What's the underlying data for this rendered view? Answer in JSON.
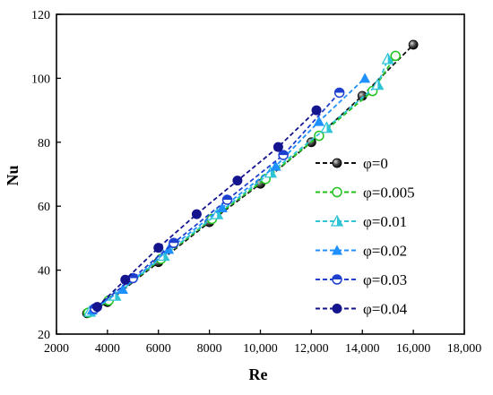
{
  "chart_data": {
    "type": "line",
    "xlabel": "Re",
    "ylabel": "Nu",
    "xlim": [
      2000,
      18000
    ],
    "ylim": [
      20,
      120
    ],
    "x_ticks": [
      "2000",
      "4000",
      "6000",
      "8000",
      "10,000",
      "12,000",
      "14,000",
      "16,000",
      "18,000"
    ],
    "y_ticks": [
      "20",
      "40",
      "60",
      "80",
      "100",
      "120"
    ],
    "grid": false,
    "legend_position": "right",
    "series": [
      {
        "name": "φ=0",
        "color": "#111111",
        "marker": "sphere",
        "points": [
          [
            3200,
            26.5
          ],
          [
            4000,
            30
          ],
          [
            6000,
            42.5
          ],
          [
            8000,
            55
          ],
          [
            10000,
            67
          ],
          [
            12000,
            80
          ],
          [
            14000,
            94.5
          ],
          [
            16000,
            110.5
          ]
        ]
      },
      {
        "name": "φ=0.005",
        "color": "#22c21f",
        "marker": "open-circle",
        "points": [
          [
            3250,
            26.7
          ],
          [
            4050,
            30.5
          ],
          [
            6100,
            43.5
          ],
          [
            8100,
            56
          ],
          [
            10200,
            68.5
          ],
          [
            12300,
            82
          ],
          [
            14400,
            96
          ],
          [
            15300,
            107
          ]
        ]
      },
      {
        "name": "φ=0.01",
        "color": "#2ec4d6",
        "marker": "half-triangle",
        "points": [
          [
            3300,
            27
          ],
          [
            4300,
            32
          ],
          [
            6200,
            44.5
          ],
          [
            8300,
            57.5
          ],
          [
            10400,
            70.5
          ],
          [
            12600,
            84.5
          ],
          [
            14600,
            98
          ],
          [
            15000,
            106
          ]
        ]
      },
      {
        "name": "φ=0.02",
        "color": "#1e90ff",
        "marker": "triangle",
        "points": [
          [
            3400,
            27.5
          ],
          [
            4600,
            34
          ],
          [
            6400,
            46.5
          ],
          [
            8500,
            59.5
          ],
          [
            10600,
            72.5
          ],
          [
            12300,
            86.5
          ],
          [
            14100,
            100
          ]
        ]
      },
      {
        "name": "φ=0.03",
        "color": "#1f3fcf",
        "marker": "half-circle",
        "points": [
          [
            3500,
            28
          ],
          [
            5000,
            37.5
          ],
          [
            6600,
            48.5
          ],
          [
            8700,
            62
          ],
          [
            10900,
            76
          ],
          [
            13100,
            95.5
          ]
        ]
      },
      {
        "name": "φ=0.04",
        "color": "#14148f",
        "marker": "circle",
        "points": [
          [
            3600,
            28.5
          ],
          [
            4700,
            37
          ],
          [
            6000,
            47
          ],
          [
            7500,
            57.5
          ],
          [
            9100,
            68
          ],
          [
            10700,
            78.5
          ],
          [
            12200,
            90
          ]
        ]
      }
    ]
  }
}
